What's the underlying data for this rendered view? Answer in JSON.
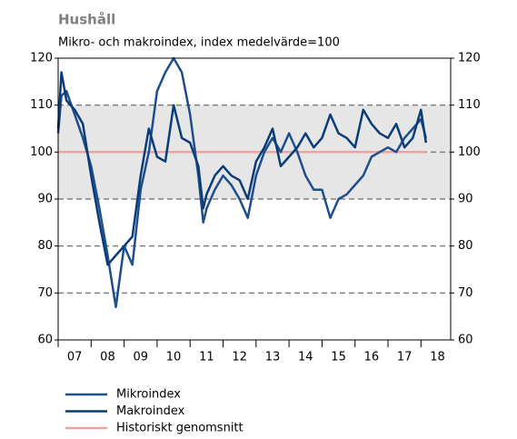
{
  "chart_data": {
    "type": "line",
    "title": "Hushåll",
    "subtitle": "Mikro- och makroindex, index medelvärde=100",
    "x": [
      7.0,
      7.1,
      7.25,
      7.5,
      7.75,
      8.0,
      8.25,
      8.5,
      8.75,
      9.0,
      9.25,
      9.5,
      9.75,
      10.0,
      10.25,
      10.5,
      10.75,
      11.0,
      11.25,
      11.4,
      11.5,
      11.75,
      12.0,
      12.25,
      12.5,
      12.75,
      13.0,
      13.25,
      13.5,
      13.75,
      14.0,
      14.25,
      14.5,
      14.75,
      15.0,
      15.25,
      15.5,
      15.75,
      16.0,
      16.25,
      16.5,
      16.75,
      17.0,
      17.25,
      17.5,
      17.75,
      18.0,
      18.15
    ],
    "series": [
      {
        "name": "Mikroindex",
        "color": "#1f4e8c",
        "values": [
          104,
          112,
          113,
          108,
          103,
          97,
          88,
          78,
          67,
          80,
          76,
          92,
          100,
          113,
          117,
          120,
          117,
          108,
          95,
          85,
          88,
          92,
          95,
          93,
          90,
          86,
          95,
          100,
          103,
          100,
          104,
          100,
          95,
          92,
          92,
          86,
          90,
          91,
          93,
          95,
          99,
          100,
          101,
          100,
          103,
          105,
          107,
          103
        ]
      },
      {
        "name": "Makroindex",
        "color": "#0a3c7a",
        "values": [
          105,
          117,
          111,
          109,
          106,
          95,
          85,
          76,
          78,
          80,
          82,
          95,
          105,
          99,
          98,
          110,
          103,
          102,
          97,
          88,
          91,
          95,
          97,
          95,
          94,
          90,
          98,
          101,
          105,
          97,
          99,
          101,
          104,
          101,
          103,
          108,
          104,
          103,
          101,
          109,
          106,
          104,
          103,
          106,
          101,
          103,
          109,
          102
        ]
      },
      {
        "name": "Historiskt genomsnitt",
        "color": "#f4a0a0",
        "values": [
          100,
          100,
          100,
          100,
          100,
          100,
          100,
          100,
          100,
          100,
          100,
          100,
          100,
          100,
          100,
          100,
          100,
          100,
          100,
          100,
          100,
          100,
          100,
          100,
          100,
          100,
          100,
          100,
          100,
          100,
          100,
          100,
          100,
          100,
          100,
          100,
          100,
          100,
          100,
          100,
          100,
          100,
          100,
          100,
          100,
          100,
          100,
          100
        ]
      }
    ],
    "xlim": [
      7,
      18.9
    ],
    "xticks": [
      {
        "value": 7.5,
        "label": "07"
      },
      {
        "value": 8.5,
        "label": "08"
      },
      {
        "value": 9.5,
        "label": "09"
      },
      {
        "value": 10.5,
        "label": "10"
      },
      {
        "value": 11.5,
        "label": "11"
      },
      {
        "value": 12.5,
        "label": "12"
      },
      {
        "value": 13.5,
        "label": "13"
      },
      {
        "value": 14.5,
        "label": "14"
      },
      {
        "value": 15.5,
        "label": "15"
      },
      {
        "value": 16.5,
        "label": "16"
      },
      {
        "value": 17.5,
        "label": "17"
      },
      {
        "value": 18.5,
        "label": "18"
      }
    ],
    "ylim": [
      60,
      120
    ],
    "yticks": [
      60,
      70,
      80,
      90,
      100,
      110,
      120
    ],
    "shaded_range": [
      90,
      110
    ],
    "grid": true
  }
}
